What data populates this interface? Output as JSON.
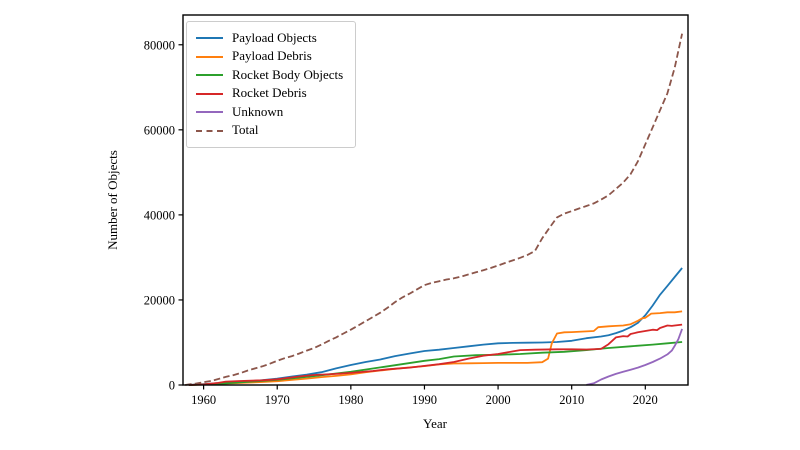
{
  "chart_data": {
    "type": "line",
    "title": "",
    "xlabel": "Year",
    "ylabel": "Number of Objects",
    "xlim": [
      1957.2,
      2025.8
    ],
    "ylim": [
      0,
      87000
    ],
    "xticks": [
      1960,
      1970,
      1980,
      1990,
      2000,
      2010,
      2020
    ],
    "yticks": [
      0,
      20000,
      40000,
      60000,
      80000
    ],
    "grid": false,
    "legend_position": "upper-left",
    "series": [
      {
        "name": "Payload Objects",
        "color": "#1f77b4",
        "dash": "solid",
        "points": [
          [
            1958,
            20
          ],
          [
            1960,
            200
          ],
          [
            1962,
            420
          ],
          [
            1964,
            580
          ],
          [
            1966,
            850
          ],
          [
            1968,
            1150
          ],
          [
            1970,
            1500
          ],
          [
            1972,
            2000
          ],
          [
            1974,
            2450
          ],
          [
            1976,
            3000
          ],
          [
            1978,
            3900
          ],
          [
            1980,
            4700
          ],
          [
            1982,
            5400
          ],
          [
            1984,
            6000
          ],
          [
            1986,
            6800
          ],
          [
            1988,
            7400
          ],
          [
            1990,
            8000
          ],
          [
            1992,
            8300
          ],
          [
            1994,
            8700
          ],
          [
            1996,
            9100
          ],
          [
            1998,
            9500
          ],
          [
            2000,
            9800
          ],
          [
            2002,
            9900
          ],
          [
            2004,
            9950
          ],
          [
            2006,
            10000
          ],
          [
            2008,
            10100
          ],
          [
            2010,
            10400
          ],
          [
            2012,
            11000
          ],
          [
            2014,
            11400
          ],
          [
            2015,
            11700
          ],
          [
            2016,
            12200
          ],
          [
            2017,
            12800
          ],
          [
            2018,
            13600
          ],
          [
            2019,
            14600
          ],
          [
            2020,
            16400
          ],
          [
            2021,
            18700
          ],
          [
            2022,
            21200
          ],
          [
            2023,
            23300
          ],
          [
            2024,
            25400
          ],
          [
            2025,
            27500
          ]
        ]
      },
      {
        "name": "Payload Debris",
        "color": "#ff7f0e",
        "dash": "solid",
        "points": [
          [
            1958,
            10
          ],
          [
            1960,
            100
          ],
          [
            1962,
            300
          ],
          [
            1964,
            420
          ],
          [
            1966,
            560
          ],
          [
            1968,
            700
          ],
          [
            1970,
            900
          ],
          [
            1972,
            1200
          ],
          [
            1974,
            1500
          ],
          [
            1976,
            1850
          ],
          [
            1978,
            2150
          ],
          [
            1980,
            2500
          ],
          [
            1982,
            3000
          ],
          [
            1984,
            3400
          ],
          [
            1986,
            3800
          ],
          [
            1988,
            4150
          ],
          [
            1990,
            4450
          ],
          [
            1992,
            4850
          ],
          [
            1994,
            5050
          ],
          [
            1996,
            5100
          ],
          [
            1998,
            5150
          ],
          [
            2000,
            5200
          ],
          [
            2002,
            5200
          ],
          [
            2004,
            5200
          ],
          [
            2006,
            5350
          ],
          [
            2006.8,
            6200
          ],
          [
            2007.3,
            9800
          ],
          [
            2008,
            12100
          ],
          [
            2009,
            12400
          ],
          [
            2010,
            12450
          ],
          [
            2012,
            12600
          ],
          [
            2013,
            12700
          ],
          [
            2013.6,
            13600
          ],
          [
            2015,
            13800
          ],
          [
            2016,
            13900
          ],
          [
            2017,
            14000
          ],
          [
            2018,
            14300
          ],
          [
            2019,
            15100
          ],
          [
            2019.6,
            15700
          ],
          [
            2020,
            15800
          ],
          [
            2020.8,
            16800
          ],
          [
            2022,
            16900
          ],
          [
            2023,
            17100
          ],
          [
            2024,
            17100
          ],
          [
            2025,
            17300
          ]
        ]
      },
      {
        "name": "Rocket Body Objects",
        "color": "#2ca02c",
        "dash": "solid",
        "points": [
          [
            1958,
            10
          ],
          [
            1960,
            150
          ],
          [
            1963,
            400
          ],
          [
            1965,
            600
          ],
          [
            1970,
            1200
          ],
          [
            1975,
            2100
          ],
          [
            1980,
            3100
          ],
          [
            1985,
            4400
          ],
          [
            1990,
            5700
          ],
          [
            1992,
            6100
          ],
          [
            1994,
            6700
          ],
          [
            1997,
            7000
          ],
          [
            2000,
            7100
          ],
          [
            2003,
            7300
          ],
          [
            2006,
            7600
          ],
          [
            2009,
            7800
          ],
          [
            2012,
            8200
          ],
          [
            2015,
            8700
          ],
          [
            2018,
            9100
          ],
          [
            2021,
            9500
          ],
          [
            2023,
            9800
          ],
          [
            2025,
            10100
          ]
        ]
      },
      {
        "name": "Rocket Debris",
        "color": "#d62728",
        "dash": "solid",
        "points": [
          [
            1958,
            10
          ],
          [
            1960,
            150
          ],
          [
            1962,
            500
          ],
          [
            1963,
            800
          ],
          [
            1965,
            950
          ],
          [
            1968,
            1100
          ],
          [
            1970,
            1350
          ],
          [
            1973,
            2000
          ],
          [
            1975,
            2350
          ],
          [
            1978,
            2600
          ],
          [
            1980,
            2850
          ],
          [
            1983,
            3300
          ],
          [
            1985,
            3700
          ],
          [
            1988,
            4100
          ],
          [
            1990,
            4500
          ],
          [
            1992,
            4900
          ],
          [
            1994,
            5400
          ],
          [
            1996,
            6200
          ],
          [
            1998,
            6900
          ],
          [
            2000,
            7300
          ],
          [
            2002,
            7900
          ],
          [
            2003,
            8200
          ],
          [
            2005,
            8300
          ],
          [
            2008,
            8400
          ],
          [
            2010,
            8400
          ],
          [
            2012,
            8350
          ],
          [
            2014,
            8500
          ],
          [
            2015,
            9600
          ],
          [
            2016,
            11200
          ],
          [
            2017,
            11500
          ],
          [
            2017.6,
            11400
          ],
          [
            2018,
            12000
          ],
          [
            2019,
            12400
          ],
          [
            2020,
            12700
          ],
          [
            2021,
            13000
          ],
          [
            2021.6,
            12900
          ],
          [
            2022,
            13400
          ],
          [
            2023,
            14000
          ],
          [
            2023.6,
            13900
          ],
          [
            2024,
            14000
          ],
          [
            2025,
            14200
          ]
        ]
      },
      {
        "name": "Unknown",
        "color": "#9467bd",
        "dash": "solid",
        "points": [
          [
            2012,
            30
          ],
          [
            2013,
            400
          ],
          [
            2014,
            1300
          ],
          [
            2015,
            2000
          ],
          [
            2016,
            2600
          ],
          [
            2017,
            3100
          ],
          [
            2018,
            3600
          ],
          [
            2019,
            4100
          ],
          [
            2020,
            4700
          ],
          [
            2021,
            5400
          ],
          [
            2022,
            6200
          ],
          [
            2023,
            7200
          ],
          [
            2023.6,
            8100
          ],
          [
            2024,
            9200
          ],
          [
            2024.5,
            10800
          ],
          [
            2025,
            13200
          ]
        ]
      },
      {
        "name": "Total",
        "color": "#8c564b",
        "dash": "dashed",
        "points": [
          [
            1957.5,
            0
          ],
          [
            1958,
            150
          ],
          [
            1959,
            350
          ],
          [
            1960,
            650
          ],
          [
            1961,
            950
          ],
          [
            1962,
            1400
          ],
          [
            1963,
            1900
          ],
          [
            1964,
            2300
          ],
          [
            1965,
            2800
          ],
          [
            1966,
            3400
          ],
          [
            1967,
            3900
          ],
          [
            1968,
            4400
          ],
          [
            1969,
            5000
          ],
          [
            1970,
            5700
          ],
          [
            1971,
            6300
          ],
          [
            1972,
            6800
          ],
          [
            1973,
            7400
          ],
          [
            1974,
            8100
          ],
          [
            1975,
            8700
          ],
          [
            1976,
            9500
          ],
          [
            1977,
            10400
          ],
          [
            1978,
            11200
          ],
          [
            1979,
            12100
          ],
          [
            1980,
            13000
          ],
          [
            1981,
            14000
          ],
          [
            1982,
            15000
          ],
          [
            1983,
            16000
          ],
          [
            1984,
            17000
          ],
          [
            1985,
            18200
          ],
          [
            1986,
            19500
          ],
          [
            1987,
            20600
          ],
          [
            1988,
            21500
          ],
          [
            1989,
            22500
          ],
          [
            1990,
            23500
          ],
          [
            1991,
            24000
          ],
          [
            1992,
            24400
          ],
          [
            1993,
            24800
          ],
          [
            1994,
            25100
          ],
          [
            1995,
            25500
          ],
          [
            1996,
            26000
          ],
          [
            1997,
            26500
          ],
          [
            1998,
            27000
          ],
          [
            1999,
            27500
          ],
          [
            2000,
            28100
          ],
          [
            2001,
            28700
          ],
          [
            2002,
            29300
          ],
          [
            2003,
            29900
          ],
          [
            2004,
            30600
          ],
          [
            2005,
            31500
          ],
          [
            2006,
            34500
          ],
          [
            2007,
            37000
          ],
          [
            2008,
            39400
          ],
          [
            2009,
            40300
          ],
          [
            2010,
            40900
          ],
          [
            2011,
            41500
          ],
          [
            2012,
            42100
          ],
          [
            2013,
            42700
          ],
          [
            2014,
            43600
          ],
          [
            2015,
            44600
          ],
          [
            2016,
            46100
          ],
          [
            2017,
            47600
          ],
          [
            2018,
            49600
          ],
          [
            2019,
            52600
          ],
          [
            2020,
            56600
          ],
          [
            2021,
            60600
          ],
          [
            2022,
            64600
          ],
          [
            2023,
            68600
          ],
          [
            2024,
            74600
          ],
          [
            2025,
            82600
          ]
        ]
      }
    ]
  }
}
